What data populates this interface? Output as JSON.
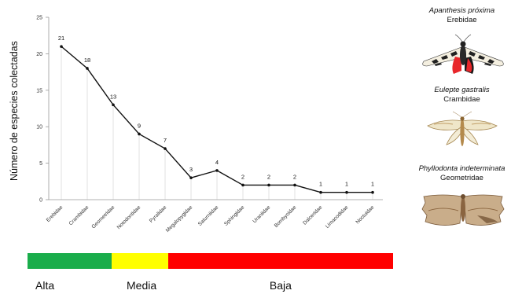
{
  "chart_data": {
    "type": "line",
    "ylabel": "Número de especies colectadas",
    "xlabel": "",
    "title": "",
    "ylim": [
      0,
      25
    ],
    "yticks": [
      0,
      5,
      10,
      15,
      20,
      25
    ],
    "categories": [
      "Erebidae",
      "Crambidae",
      "Geometridae",
      "Notodontidae",
      "Pyralidae",
      "Megalopygidae",
      "Saturniidae",
      "Sphingidae",
      "Uraniidae",
      "Bombycidae",
      "Dalceridae",
      "Limacodidae",
      "Noctuidae"
    ],
    "values": [
      21,
      18,
      13,
      9,
      7,
      3,
      4,
      2,
      2,
      2,
      1,
      1,
      1
    ],
    "data_labels": [
      "21",
      "18",
      "13",
      "9",
      "7",
      "3",
      "4",
      "2",
      "2",
      "2",
      "1",
      "1",
      "1"
    ],
    "grid": false,
    "line_color": "#111111"
  },
  "abundance_bar": {
    "segments": [
      {
        "label": "Alta",
        "color": "#1aad4b",
        "from_category": 0,
        "to_category": 2
      },
      {
        "label": "Media",
        "color": "#ffff00",
        "from_category": 3,
        "to_category": 4
      },
      {
        "label": "Baja",
        "color": "#ff0000",
        "from_category": 5,
        "to_category": 12
      }
    ]
  },
  "species": [
    {
      "scientific_name": "Apanthesis próxima",
      "family": "Erebidae"
    },
    {
      "scientific_name": "Eulepte gastralis",
      "family": "Crambidae"
    },
    {
      "scientific_name": "Phyllodonta indeterminata",
      "family": "Geometridae"
    }
  ]
}
